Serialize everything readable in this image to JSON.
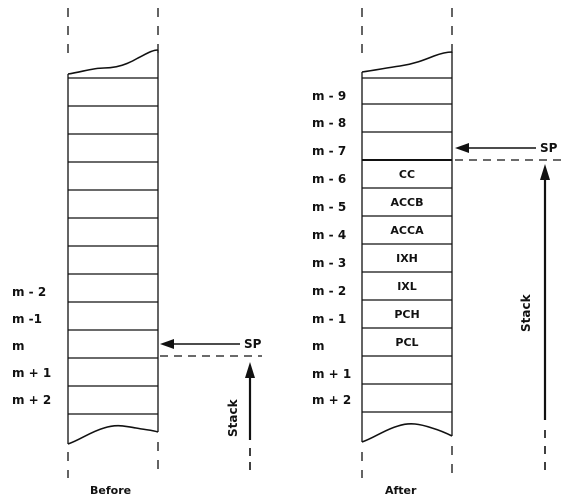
{
  "before": {
    "caption": "Before",
    "row_labels": [
      "m - 2",
      "m -1",
      "m",
      "m + 1",
      "m + 2"
    ],
    "pointer_label": "SP",
    "stack_label": "Stack"
  },
  "after": {
    "caption": "After",
    "row_labels": [
      "m - 9",
      "m - 8",
      "m - 7",
      "m - 6",
      "m - 5",
      "m - 4",
      "m - 3",
      "m - 2",
      "m - 1",
      "m",
      "m + 1",
      "m + 2"
    ],
    "cell_contents": [
      "CC",
      "ACCB",
      "ACCA",
      "IXH",
      "IXL",
      "PCH",
      "PCL"
    ],
    "pointer_label": "SP",
    "stack_label": "Stack"
  }
}
